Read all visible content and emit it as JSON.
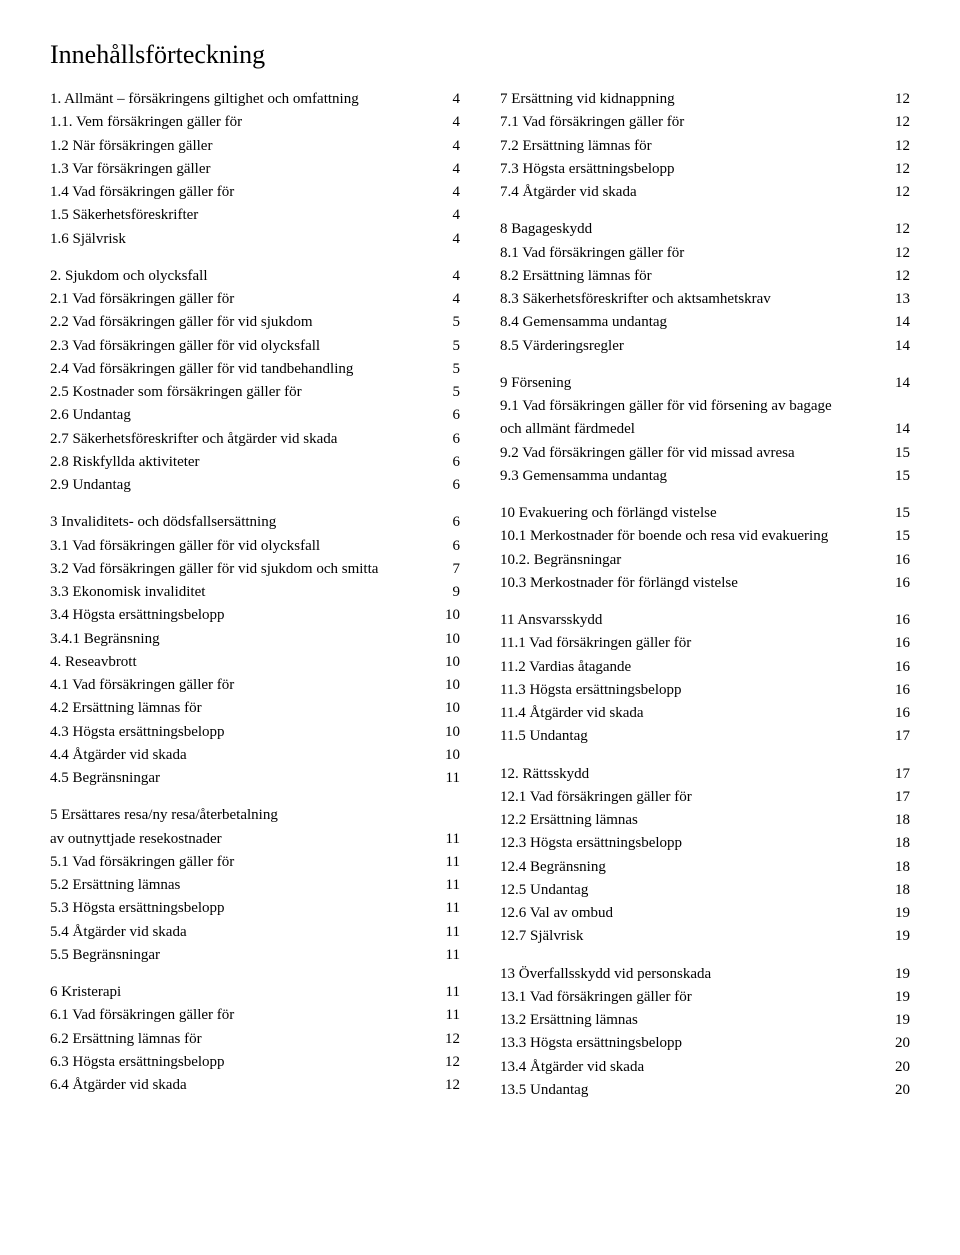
{
  "title": "Innehållsförteckning",
  "left": [
    {
      "label": "1. Allmänt – försäkringens giltighet och omfattning",
      "page": "4"
    },
    {
      "label": "1.1. Vem försäkringen gäller för",
      "page": "4"
    },
    {
      "label": "1.2 När försäkringen gäller",
      "page": "4"
    },
    {
      "label": "1.3 Var försäkringen gäller",
      "page": "4"
    },
    {
      "label": "1.4 Vad försäkringen gäller för",
      "page": "4"
    },
    {
      "label": "1.5 Säkerhetsföreskrifter",
      "page": "4"
    },
    {
      "label": "1.6 Självrisk",
      "page": "4"
    },
    {
      "break": true
    },
    {
      "label": "2. Sjukdom och olycksfall",
      "page": "4"
    },
    {
      "label": "2.1 Vad försäkringen gäller för",
      "page": "4"
    },
    {
      "label": "2.2 Vad försäkringen gäller för vid sjukdom",
      "page": "5"
    },
    {
      "label": "2.3 Vad försäkringen gäller för vid olycksfall",
      "page": "5"
    },
    {
      "label": "2.4 Vad försäkringen gäller för vid tandbehandling",
      "page": "5"
    },
    {
      "label": "2.5 Kostnader som försäkringen gäller för",
      "page": "5"
    },
    {
      "label": "2.6 Undantag",
      "page": "6"
    },
    {
      "label": "2.7 Säkerhetsföreskrifter och åtgärder vid skada",
      "page": "6"
    },
    {
      "label": "2.8 Riskfyllda aktiviteter",
      "page": "6"
    },
    {
      "label": "2.9 Undantag",
      "page": "6"
    },
    {
      "break": true
    },
    {
      "label": "3 Invaliditets- och dödsfallsersättning",
      "page": "6"
    },
    {
      "label": "3.1 Vad försäkringen gäller för vid olycksfall",
      "page": "6"
    },
    {
      "label": "3.2 Vad försäkringen gäller för vid sjukdom och smitta",
      "page": "7"
    },
    {
      "label": "3.3 Ekonomisk invaliditet",
      "page": "9"
    },
    {
      "label": "3.4 Högsta ersättningsbelopp",
      "page": "10"
    },
    {
      "label": "3.4.1 Begränsning",
      "page": "10"
    },
    {
      "label": "4. Reseavbrott",
      "page": "10"
    },
    {
      "label": "4.1 Vad försäkringen gäller för",
      "page": "10"
    },
    {
      "label": "4.2 Ersättning lämnas för",
      "page": "10"
    },
    {
      "label": "4.3 Högsta ersättningsbelopp",
      "page": "10"
    },
    {
      "label": "4.4 Åtgärder vid skada",
      "page": "10"
    },
    {
      "label": "4.5 Begränsningar",
      "page": "11"
    },
    {
      "break": true
    },
    {
      "label": "5 Ersättares resa/ny resa/återbetalning",
      "page": ""
    },
    {
      "label": "av outnyttjade resekostnader",
      "page": "11"
    },
    {
      "label": "5.1 Vad försäkringen gäller för",
      "page": "11"
    },
    {
      "label": "5.2 Ersättning lämnas",
      "page": "11"
    },
    {
      "label": "5.3 Högsta ersättningsbelopp",
      "page": "11"
    },
    {
      "label": "5.4 Åtgärder vid skada",
      "page": "11"
    },
    {
      "label": "5.5 Begränsningar",
      "page": "11"
    },
    {
      "break": true
    },
    {
      "label": "6 Kristerapi",
      "page": "11"
    },
    {
      "label": "6.1 Vad försäkringen gäller för",
      "page": "11"
    },
    {
      "label": "6.2 Ersättning lämnas för",
      "page": "12"
    },
    {
      "label": "6.3 Högsta ersättningsbelopp",
      "page": "12"
    },
    {
      "label": "6.4 Åtgärder vid skada",
      "page": "12"
    }
  ],
  "right": [
    {
      "label": "7 Ersättning vid kidnappning",
      "page": "12"
    },
    {
      "label": "7.1 Vad försäkringen gäller för",
      "page": "12"
    },
    {
      "label": "7.2 Ersättning lämnas för",
      "page": "12"
    },
    {
      "label": "7.3 Högsta ersättningsbelopp",
      "page": "12"
    },
    {
      "label": "7.4 Åtgärder vid skada",
      "page": "12"
    },
    {
      "break": true
    },
    {
      "label": "8 Bagageskydd",
      "page": "12"
    },
    {
      "label": "8.1 Vad försäkringen gäller för",
      "page": "12"
    },
    {
      "label": "8.2 Ersättning lämnas för",
      "page": "12"
    },
    {
      "label": "8.3 Säkerhetsföreskrifter och aktsamhetskrav",
      "page": "13"
    },
    {
      "label": "8.4 Gemensamma undantag",
      "page": "14"
    },
    {
      "label": "8.5 Värderingsregler",
      "page": "14"
    },
    {
      "break": true
    },
    {
      "label": "9 Försening",
      "page": "14"
    },
    {
      "label": "9.1 Vad försäkringen gäller för vid försening av bagage",
      "page": ""
    },
    {
      "label": "och allmänt färdmedel",
      "page": "14"
    },
    {
      "label": "9.2 Vad försäkringen gäller för vid missad avresa",
      "page": "15"
    },
    {
      "label": "9.3 Gemensamma undantag",
      "page": "15"
    },
    {
      "break": true
    },
    {
      "label": "10 Evakuering och förlängd vistelse",
      "page": "15"
    },
    {
      "label": "10.1 Merkostnader för boende och resa vid evakuering",
      "page": "15"
    },
    {
      "label": "10.2. Begränsningar",
      "page": "16"
    },
    {
      "label": "10.3 Merkostnader för förlängd vistelse",
      "page": "16"
    },
    {
      "break": true
    },
    {
      "label": "11 Ansvarsskydd",
      "page": "16"
    },
    {
      "label": "11.1 Vad försäkringen gäller för",
      "page": "16"
    },
    {
      "label": "11.2 Vardias åtagande",
      "page": "16"
    },
    {
      "label": "11.3 Högsta ersättningsbelopp",
      "page": "16"
    },
    {
      "label": "11.4 Åtgärder vid skada",
      "page": "16"
    },
    {
      "label": "11.5 Undantag",
      "page": "17"
    },
    {
      "break": true
    },
    {
      "label": "12. Rättsskydd",
      "page": "17"
    },
    {
      "label": "12.1 Vad försäkringen gäller för",
      "page": "17"
    },
    {
      "label": "12.2 Ersättning lämnas",
      "page": "18"
    },
    {
      "label": "12.3 Högsta ersättningsbelopp",
      "page": "18"
    },
    {
      "label": "12.4 Begränsning",
      "page": "18"
    },
    {
      "label": "12.5 Undantag",
      "page": "18"
    },
    {
      "label": "12.6 Val av ombud",
      "page": "19"
    },
    {
      "label": "12.7 Självrisk",
      "page": "19"
    },
    {
      "break": true
    },
    {
      "label": "13 Överfallsskydd vid personskada",
      "page": "19"
    },
    {
      "label": "13.1 Vad försäkringen gäller för",
      "page": "19"
    },
    {
      "label": "13.2 Ersättning lämnas",
      "page": "19"
    },
    {
      "label": "13.3 Högsta ersättningsbelopp",
      "page": "20"
    },
    {
      "label": "13.4 Åtgärder vid skada",
      "page": "20"
    },
    {
      "label": "13.5 Undantag",
      "page": "20"
    }
  ]
}
